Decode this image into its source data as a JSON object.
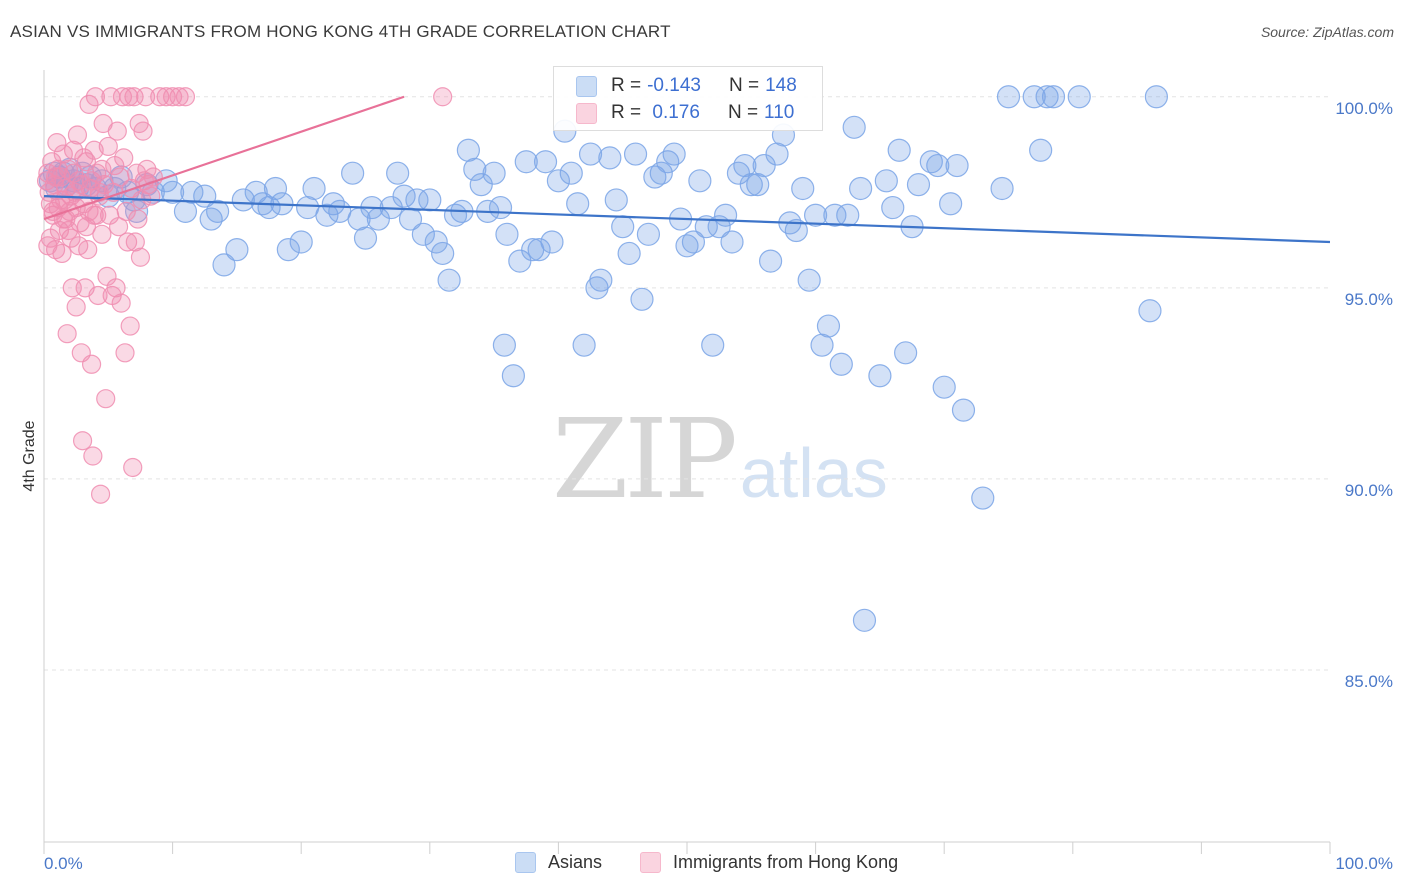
{
  "title": "ASIAN VS IMMIGRANTS FROM HONG KONG 4TH GRADE CORRELATION CHART",
  "source": "Source: ZipAtlas.com",
  "watermark": {
    "zip": "ZIP",
    "atlas": "atlas"
  },
  "legend": {
    "rows": [
      {
        "r_label": "R = ",
        "r_value": "-0.143",
        "n_label": "N = ",
        "n_value": "148",
        "color": "#a9c6ef"
      },
      {
        "r_label": "R = ",
        "r_value": " 0.176",
        "n_label": "N = ",
        "n_value": "110",
        "color": "#f6b8cc"
      }
    ]
  },
  "bottom_legend": [
    {
      "label": "Asians",
      "color": "#a9c6ef"
    },
    {
      "label": "Immigrants from Hong Kong",
      "color": "#f6b8cc"
    }
  ],
  "chart_data": {
    "type": "scatter",
    "title": "ASIAN VS IMMIGRANTS FROM HONG KONG 4TH GRADE CORRELATION CHART",
    "xlabel": "",
    "ylabel": "4th Grade",
    "xlim": [
      0,
      100
    ],
    "ylim": [
      80.5,
      100.7
    ],
    "x_tick_labels": [
      "0.0%",
      "100.0%"
    ],
    "y_ticks": [
      85,
      90,
      95,
      100
    ],
    "y_tick_labels": [
      "85.0%",
      "90.0%",
      "95.0%",
      "100.0%"
    ],
    "grid": true,
    "series": [
      {
        "name": "Asians",
        "color": "#7aa5e6",
        "trend": {
          "x": [
            0,
            100
          ],
          "y": [
            97.4,
            96.2
          ],
          "color": "#3d74c9"
        },
        "points": [
          [
            0.5,
            97.8
          ],
          [
            0.8,
            98.0
          ],
          [
            1.0,
            97.6
          ],
          [
            1.2,
            97.9
          ],
          [
            1.5,
            98.0
          ],
          [
            1.8,
            97.7
          ],
          [
            2.0,
            98.1
          ],
          [
            2.3,
            97.8
          ],
          [
            2.6,
            97.6
          ],
          [
            3.0,
            98.0
          ],
          [
            3.3,
            97.7
          ],
          [
            3.6,
            97.9
          ],
          [
            4.0,
            97.6
          ],
          [
            4.5,
            97.8
          ],
          [
            5.0,
            97.4
          ],
          [
            5.5,
            97.6
          ],
          [
            6.0,
            97.9
          ],
          [
            6.5,
            97.5
          ],
          [
            7.0,
            97.3
          ],
          [
            7.2,
            97.0
          ],
          [
            8.0,
            97.7
          ],
          [
            8.5,
            97.5
          ],
          [
            9.5,
            97.8
          ],
          [
            10.0,
            97.5
          ],
          [
            11.0,
            97.0
          ],
          [
            11.5,
            97.5
          ],
          [
            12.5,
            97.4
          ],
          [
            13.0,
            96.8
          ],
          [
            13.5,
            97.0
          ],
          [
            14.0,
            95.6
          ],
          [
            15.0,
            96.0
          ],
          [
            15.5,
            97.3
          ],
          [
            16.5,
            97.5
          ],
          [
            17.0,
            97.2
          ],
          [
            17.5,
            97.1
          ],
          [
            18.0,
            97.6
          ],
          [
            18.5,
            97.2
          ],
          [
            19.0,
            96.0
          ],
          [
            20.0,
            96.2
          ],
          [
            20.5,
            97.1
          ],
          [
            21.0,
            97.6
          ],
          [
            22.0,
            96.9
          ],
          [
            22.5,
            97.2
          ],
          [
            23.0,
            97.0
          ],
          [
            24.0,
            98.0
          ],
          [
            24.5,
            96.8
          ],
          [
            25.0,
            96.3
          ],
          [
            25.5,
            97.1
          ],
          [
            26.0,
            96.8
          ],
          [
            27.0,
            97.1
          ],
          [
            27.5,
            98.0
          ],
          [
            28.0,
            97.4
          ],
          [
            28.5,
            96.8
          ],
          [
            29.0,
            97.3
          ],
          [
            29.5,
            96.4
          ],
          [
            30.0,
            97.3
          ],
          [
            30.5,
            96.2
          ],
          [
            31.0,
            95.9
          ],
          [
            31.5,
            95.2
          ],
          [
            32.0,
            96.9
          ],
          [
            32.5,
            97.0
          ],
          [
            33.0,
            98.6
          ],
          [
            33.5,
            98.1
          ],
          [
            34.0,
            97.7
          ],
          [
            34.5,
            97.0
          ],
          [
            35.0,
            98.0
          ],
          [
            35.5,
            97.1
          ],
          [
            35.8,
            93.5
          ],
          [
            36.0,
            96.4
          ],
          [
            36.5,
            92.7
          ],
          [
            37.0,
            95.7
          ],
          [
            37.5,
            98.3
          ],
          [
            38.0,
            96.0
          ],
          [
            38.5,
            96.0
          ],
          [
            39.0,
            98.3
          ],
          [
            39.5,
            96.2
          ],
          [
            40.0,
            97.8
          ],
          [
            40.5,
            99.1
          ],
          [
            41.0,
            98.0
          ],
          [
            41.5,
            97.2
          ],
          [
            42.0,
            93.5
          ],
          [
            42.5,
            98.5
          ],
          [
            43.0,
            95.0
          ],
          [
            43.3,
            95.2
          ],
          [
            44.0,
            98.4
          ],
          [
            44.5,
            97.3
          ],
          [
            45.0,
            96.6
          ],
          [
            45.5,
            95.9
          ],
          [
            46.0,
            98.5
          ],
          [
            46.5,
            94.7
          ],
          [
            47.0,
            96.4
          ],
          [
            47.5,
            97.9
          ],
          [
            48.0,
            98.0
          ],
          [
            48.5,
            98.3
          ],
          [
            49.0,
            98.5
          ],
          [
            49.5,
            96.8
          ],
          [
            50.0,
            96.1
          ],
          [
            50.5,
            96.2
          ],
          [
            51.0,
            97.8
          ],
          [
            51.5,
            96.6
          ],
          [
            52.0,
            93.5
          ],
          [
            52.5,
            96.6
          ],
          [
            53.0,
            96.9
          ],
          [
            53.5,
            96.2
          ],
          [
            54.0,
            98.0
          ],
          [
            54.5,
            98.2
          ],
          [
            55.0,
            97.7
          ],
          [
            55.5,
            97.7
          ],
          [
            56.0,
            98.2
          ],
          [
            56.5,
            95.7
          ],
          [
            57.0,
            98.5
          ],
          [
            57.5,
            99.0
          ],
          [
            58.0,
            96.7
          ],
          [
            58.5,
            96.5
          ],
          [
            59.0,
            97.6
          ],
          [
            59.5,
            95.2
          ],
          [
            60.0,
            96.9
          ],
          [
            60.5,
            93.5
          ],
          [
            61.0,
            94.0
          ],
          [
            61.5,
            96.9
          ],
          [
            62.0,
            93.0
          ],
          [
            62.5,
            96.9
          ],
          [
            63.0,
            99.2
          ],
          [
            63.5,
            97.6
          ],
          [
            63.8,
            86.3
          ],
          [
            65.0,
            92.7
          ],
          [
            65.5,
            97.8
          ],
          [
            66.0,
            97.1
          ],
          [
            66.5,
            98.6
          ],
          [
            67.0,
            93.3
          ],
          [
            67.5,
            96.6
          ],
          [
            68.0,
            97.7
          ],
          [
            69.0,
            98.3
          ],
          [
            69.5,
            98.2
          ],
          [
            70.0,
            92.4
          ],
          [
            70.5,
            97.2
          ],
          [
            71.0,
            98.2
          ],
          [
            71.5,
            91.8
          ],
          [
            73.0,
            89.5
          ],
          [
            74.5,
            97.6
          ],
          [
            75.0,
            100.0
          ],
          [
            77.0,
            100.0
          ],
          [
            78.0,
            100.0
          ],
          [
            78.5,
            100.0
          ],
          [
            80.5,
            100.0
          ],
          [
            77.5,
            98.6
          ],
          [
            86.0,
            94.4
          ],
          [
            86.5,
            100.0
          ]
        ]
      },
      {
        "name": "Immigrants from Hong Kong",
        "color": "#f08db0",
        "trend": {
          "x": [
            0,
            28
          ],
          "y": [
            96.8,
            100.0
          ],
          "color": "#e87198"
        },
        "points": [
          [
            0.2,
            97.8
          ],
          [
            0.3,
            98.0
          ],
          [
            0.4,
            97.5
          ],
          [
            0.5,
            97.2
          ],
          [
            0.6,
            98.3
          ],
          [
            0.7,
            96.9
          ],
          [
            0.8,
            97.7
          ],
          [
            0.9,
            96.0
          ],
          [
            1.0,
            98.8
          ],
          [
            1.1,
            97.1
          ],
          [
            1.2,
            96.5
          ],
          [
            1.3,
            97.9
          ],
          [
            1.4,
            95.9
          ],
          [
            1.5,
            98.5
          ],
          [
            1.6,
            97.3
          ],
          [
            1.7,
            96.8
          ],
          [
            1.8,
            93.8
          ],
          [
            1.9,
            98.1
          ],
          [
            2.0,
            97.0
          ],
          [
            2.1,
            96.3
          ],
          [
            2.2,
            95.0
          ],
          [
            2.3,
            98.6
          ],
          [
            2.4,
            97.5
          ],
          [
            2.5,
            94.5
          ],
          [
            2.6,
            99.0
          ],
          [
            2.7,
            97.8
          ],
          [
            2.8,
            96.7
          ],
          [
            2.9,
            93.3
          ],
          [
            3.0,
            91.0
          ],
          [
            3.1,
            97.2
          ],
          [
            3.2,
            95.0
          ],
          [
            3.3,
            98.3
          ],
          [
            3.4,
            96.0
          ],
          [
            3.5,
            99.8
          ],
          [
            3.6,
            97.6
          ],
          [
            3.7,
            93.0
          ],
          [
            3.8,
            90.6
          ],
          [
            3.9,
            96.9
          ],
          [
            4.0,
            100.0
          ],
          [
            4.1,
            98.0
          ],
          [
            4.2,
            94.8
          ],
          [
            4.3,
            97.4
          ],
          [
            4.4,
            89.6
          ],
          [
            4.5,
            96.4
          ],
          [
            4.6,
            99.3
          ],
          [
            4.7,
            97.7
          ],
          [
            4.8,
            92.1
          ],
          [
            4.9,
            95.3
          ],
          [
            5.0,
            98.7
          ],
          [
            5.1,
            96.9
          ],
          [
            5.2,
            100.0
          ],
          [
            5.3,
            94.8
          ],
          [
            5.4,
            97.5
          ],
          [
            5.5,
            98.2
          ],
          [
            5.6,
            95.0
          ],
          [
            5.7,
            99.1
          ],
          [
            5.8,
            96.6
          ],
          [
            5.9,
            97.9
          ],
          [
            6.0,
            94.6
          ],
          [
            6.1,
            100.0
          ],
          [
            6.2,
            98.4
          ],
          [
            6.3,
            93.3
          ],
          [
            6.4,
            97.0
          ],
          [
            6.5,
            96.2
          ],
          [
            6.6,
            100.0
          ],
          [
            6.7,
            94.0
          ],
          [
            6.8,
            97.6
          ],
          [
            6.9,
            90.3
          ],
          [
            7.0,
            100.0
          ],
          [
            7.1,
            96.2
          ],
          [
            7.2,
            98.0
          ],
          [
            7.3,
            96.8
          ],
          [
            7.4,
            99.3
          ],
          [
            7.5,
            95.8
          ],
          [
            7.6,
            97.3
          ],
          [
            7.7,
            99.1
          ],
          [
            7.8,
            97.8
          ],
          [
            7.9,
            100.0
          ],
          [
            8.0,
            98.1
          ],
          [
            8.1,
            97.7
          ],
          [
            8.3,
            97.4
          ],
          [
            8.5,
            97.9
          ],
          [
            9.0,
            100.0
          ],
          [
            9.5,
            100.0
          ],
          [
            10.0,
            100.0
          ],
          [
            10.5,
            100.0
          ],
          [
            11.0,
            100.0
          ],
          [
            31.0,
            100.0
          ],
          [
            0.3,
            96.1
          ],
          [
            0.5,
            96.3
          ],
          [
            0.7,
            97.0
          ],
          [
            0.9,
            97.9
          ],
          [
            1.1,
            98.1
          ],
          [
            1.3,
            97.3
          ],
          [
            1.5,
            96.8
          ],
          [
            1.7,
            97.6
          ],
          [
            1.9,
            96.5
          ],
          [
            2.1,
            97.4
          ],
          [
            2.3,
            98.0
          ],
          [
            2.5,
            97.1
          ],
          [
            2.7,
            96.1
          ],
          [
            2.9,
            97.7
          ],
          [
            3.1,
            98.4
          ],
          [
            3.3,
            96.6
          ],
          [
            3.5,
            97.0
          ],
          [
            3.7,
            97.8
          ],
          [
            3.9,
            98.6
          ],
          [
            4.1,
            96.9
          ],
          [
            4.3,
            97.5
          ],
          [
            4.5,
            98.1
          ]
        ]
      }
    ]
  }
}
